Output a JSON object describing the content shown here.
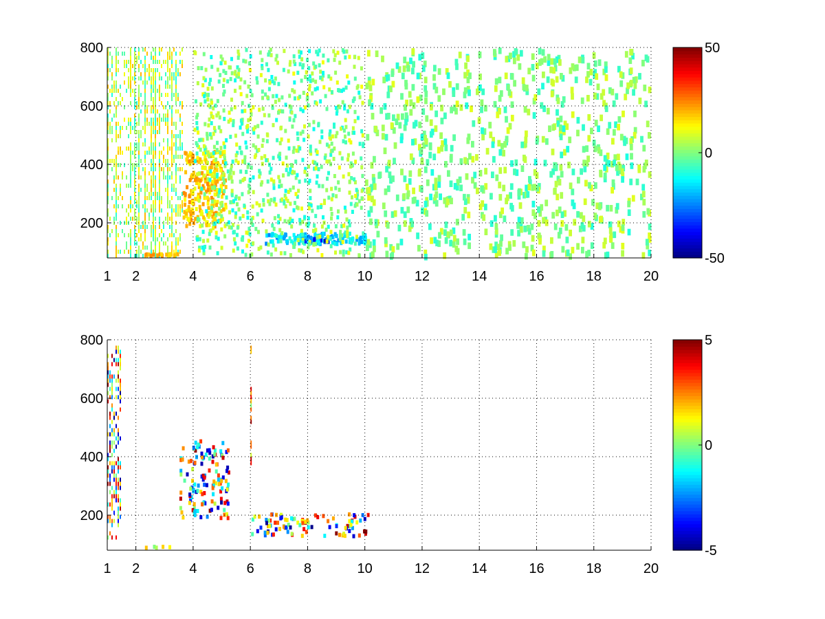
{
  "chart_data": [
    {
      "type": "heatmap",
      "title": "",
      "xlabel": "",
      "ylabel": "",
      "x_ticks": [
        1,
        2,
        4,
        6,
        8,
        10,
        12,
        14,
        16,
        18,
        20
      ],
      "y_ticks": [
        200,
        400,
        600,
        800
      ],
      "x_tick_labels": [
        "1",
        "2",
        "4",
        "6",
        "8",
        "10",
        "12",
        "14",
        "16",
        "18",
        "20"
      ],
      "y_tick_labels": [
        "200",
        "400",
        "600",
        "800"
      ],
      "xlim": [
        1,
        20
      ],
      "ylim": [
        80,
        800
      ],
      "grid": true,
      "colormap": "jet",
      "colorbar": {
        "range": [
          -50,
          50
        ],
        "ticks": [
          -50,
          0,
          50
        ],
        "tick_labels": [
          "-50",
          "0",
          "50"
        ]
      },
      "features": [
        {
          "note": "dense band",
          "x": [
            1,
            3.6
          ],
          "y": [
            80,
            800
          ],
          "value_range": [
            -10,
            20
          ]
        },
        {
          "note": "warm blob",
          "x": [
            3.6,
            5.2
          ],
          "y": [
            180,
            450
          ],
          "value_range": [
            10,
            25
          ]
        },
        {
          "note": "cool ridge",
          "x": [
            6.5,
            10.2
          ],
          "y": [
            120,
            170
          ],
          "value_range": [
            -45,
            -10
          ]
        },
        {
          "note": "sparse scatter",
          "x": [
            10,
            20
          ],
          "y": [
            80,
            800
          ],
          "value_range": [
            -10,
            10
          ]
        }
      ]
    },
    {
      "type": "heatmap",
      "title": "",
      "xlabel": "",
      "ylabel": "",
      "x_ticks": [
        1,
        2,
        4,
        6,
        8,
        10,
        12,
        14,
        16,
        18,
        20
      ],
      "y_ticks": [
        200,
        400,
        600,
        800
      ],
      "x_tick_labels": [
        "1",
        "2",
        "4",
        "6",
        "8",
        "10",
        "12",
        "14",
        "16",
        "18",
        "20"
      ],
      "y_tick_labels": [
        "200",
        "400",
        "600",
        "800"
      ],
      "xlim": [
        1,
        20
      ],
      "ylim": [
        80,
        800
      ],
      "grid": true,
      "colormap": "jet",
      "colorbar": {
        "range": [
          -5,
          5
        ],
        "ticks": [
          -5,
          0,
          5
        ],
        "tick_labels": [
          "-5",
          "0",
          "5"
        ]
      },
      "features": [
        {
          "note": "vertical streaks",
          "x": [
            1,
            1.5
          ],
          "y": [
            120,
            780
          ],
          "value_range": [
            -5,
            5
          ]
        },
        {
          "note": "blob",
          "x": [
            3.5,
            5.3
          ],
          "y": [
            180,
            460
          ],
          "value_range": [
            -5,
            5
          ]
        },
        {
          "note": "line at x=6",
          "x": [
            6,
            6.05
          ],
          "y": [
            380,
            780
          ],
          "value_range": [
            0,
            5
          ]
        },
        {
          "note": "ridge",
          "x": [
            6,
            10.2
          ],
          "y": [
            120,
            210
          ],
          "value_range": [
            -5,
            5
          ]
        },
        {
          "note": "low streak",
          "x": [
            2.3,
            3.3
          ],
          "y": [
            80,
            100
          ],
          "value_range": [
            0,
            2
          ]
        }
      ]
    }
  ]
}
